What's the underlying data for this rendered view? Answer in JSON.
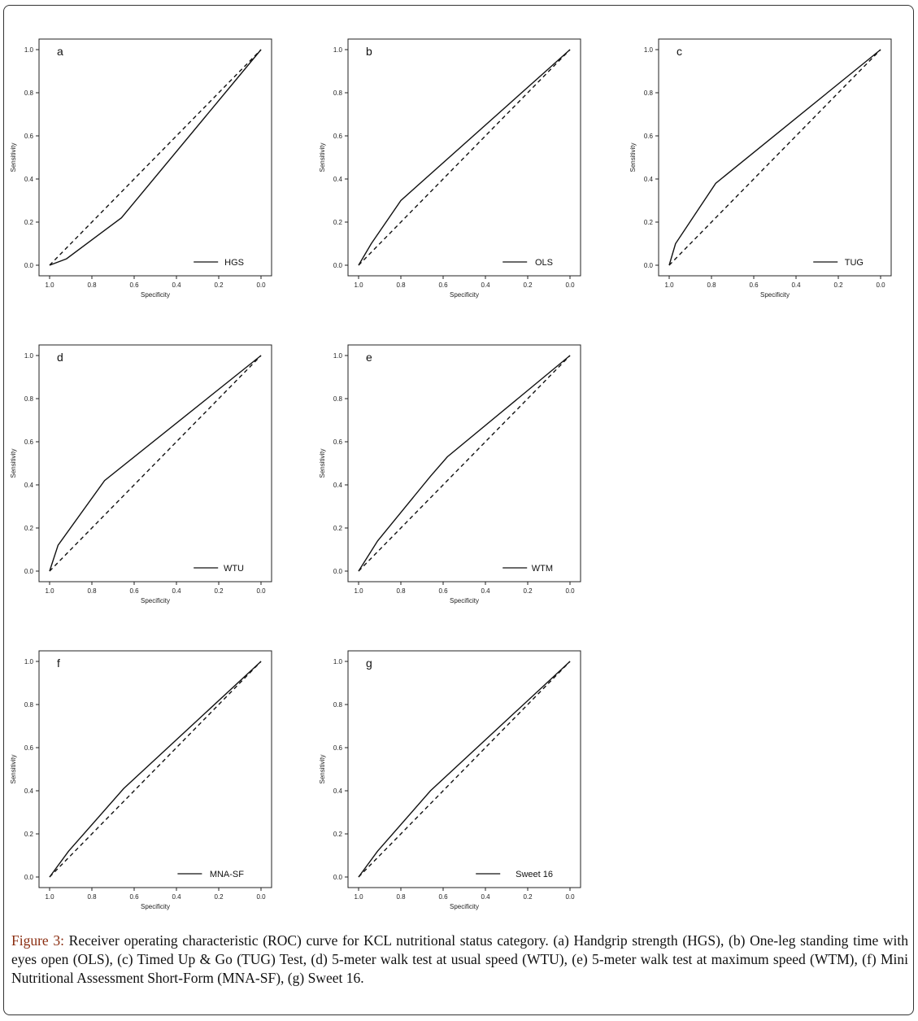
{
  "figure": {
    "caption_label": "Figure 3:",
    "caption_text": " Receiver operating characteristic (ROC) curve for KCL nutritional status category. (a) Handgrip strength (HGS), (b) One-leg standing time with eyes open (OLS), (c) Timed Up & Go (TUG) Test, (d) 5-meter walk test at usual speed (WTU), (e) 5-meter walk test at maximum speed (WTM), (f) Mini Nutritional Assessment Short-Form (MNA-SF), (g) Sweet 16."
  },
  "chart_data": [
    {
      "type": "line",
      "panel": "a",
      "xlabel": "Specificity",
      "ylabel": "Sensitivity",
      "xlim": [
        1.0,
        0.0
      ],
      "ylim": [
        0.0,
        1.0
      ],
      "xticks": [
        "1.0",
        "0.8",
        "0.6",
        "0.4",
        "0.2",
        "0.0"
      ],
      "yticks": [
        "0.0",
        "0.2",
        "0.4",
        "0.6",
        "0.8",
        "1.0"
      ],
      "legend_position": "bottom-right",
      "series": [
        {
          "name": "HGS",
          "style": "solid",
          "x": [
            1.0,
            0.92,
            0.66,
            0.0
          ],
          "y": [
            0.0,
            0.03,
            0.22,
            1.0
          ]
        },
        {
          "style": "dashed",
          "x": [
            1.0,
            0.0
          ],
          "y": [
            0.0,
            1.0
          ]
        }
      ]
    },
    {
      "type": "line",
      "panel": "b",
      "xlabel": "Specificity",
      "ylabel": "Sensitivity",
      "xlim": [
        1.0,
        0.0
      ],
      "ylim": [
        0.0,
        1.0
      ],
      "xticks": [
        "1.0",
        "0.8",
        "0.6",
        "0.4",
        "0.2",
        "0.0"
      ],
      "yticks": [
        "0.0",
        "0.2",
        "0.4",
        "0.6",
        "0.8",
        "1.0"
      ],
      "legend_position": "bottom-right",
      "series": [
        {
          "name": "OLS",
          "style": "solid",
          "x": [
            1.0,
            0.94,
            0.8,
            0.0
          ],
          "y": [
            0.0,
            0.1,
            0.3,
            1.0
          ]
        },
        {
          "style": "dashed",
          "x": [
            1.0,
            0.0
          ],
          "y": [
            0.0,
            1.0
          ]
        }
      ]
    },
    {
      "type": "line",
      "panel": "c",
      "xlabel": "Specificity",
      "ylabel": "Sensitivity",
      "xlim": [
        1.0,
        0.0
      ],
      "ylim": [
        0.0,
        1.0
      ],
      "xticks": [
        "1.0",
        "0.8",
        "0.6",
        "0.4",
        "0.2",
        "0.0"
      ],
      "yticks": [
        "0.0",
        "0.2",
        "0.4",
        "0.6",
        "0.8",
        "1.0"
      ],
      "legend_position": "bottom-right",
      "series": [
        {
          "name": "TUG",
          "style": "solid",
          "x": [
            1.0,
            0.97,
            0.78,
            0.0
          ],
          "y": [
            0.0,
            0.1,
            0.38,
            1.0
          ]
        },
        {
          "style": "dashed",
          "x": [
            1.0,
            0.0
          ],
          "y": [
            0.0,
            1.0
          ]
        }
      ]
    },
    {
      "type": "line",
      "panel": "d",
      "xlabel": "Specificity",
      "ylabel": "Sensitivity",
      "xlim": [
        1.0,
        0.0
      ],
      "ylim": [
        0.0,
        1.0
      ],
      "xticks": [
        "1.0",
        "0.8",
        "0.6",
        "0.4",
        "0.2",
        "0.0"
      ],
      "yticks": [
        "0.0",
        "0.2",
        "0.4",
        "0.6",
        "0.8",
        "1.0"
      ],
      "legend_position": "bottom-right",
      "series": [
        {
          "name": "WTU",
          "style": "solid",
          "x": [
            1.0,
            0.96,
            0.74,
            0.0
          ],
          "y": [
            0.0,
            0.12,
            0.42,
            1.0
          ]
        },
        {
          "style": "dashed",
          "x": [
            1.0,
            0.0
          ],
          "y": [
            0.0,
            1.0
          ]
        }
      ]
    },
    {
      "type": "line",
      "panel": "e",
      "xlabel": "Specificity",
      "ylabel": "Sensitivity",
      "xlim": [
        1.0,
        0.0
      ],
      "ylim": [
        0.0,
        1.0
      ],
      "xticks": [
        "1.0",
        "0.8",
        "0.6",
        "0.4",
        "0.2",
        "0.0"
      ],
      "yticks": [
        "0.0",
        "0.2",
        "0.4",
        "0.6",
        "0.8",
        "1.0"
      ],
      "legend_position": "bottom-right",
      "series": [
        {
          "name": "WTM",
          "style": "solid",
          "x": [
            1.0,
            0.91,
            0.66,
            0.58,
            0.0
          ],
          "y": [
            0.0,
            0.14,
            0.44,
            0.53,
            1.0
          ]
        },
        {
          "style": "dashed",
          "x": [
            1.0,
            0.0
          ],
          "y": [
            0.0,
            1.0
          ]
        }
      ]
    },
    {
      "type": "line",
      "panel": "f",
      "xlabel": "Specificity",
      "ylabel": "Sensitivity",
      "xlim": [
        1.0,
        0.0
      ],
      "ylim": [
        0.0,
        1.0
      ],
      "xticks": [
        "1.0",
        "0.8",
        "0.6",
        "0.4",
        "0.2",
        "0.0"
      ],
      "yticks": [
        "0.0",
        "0.2",
        "0.4",
        "0.6",
        "0.8",
        "1.0"
      ],
      "legend_position": "bottom-right",
      "series": [
        {
          "name": "MNA-SF",
          "style": "solid",
          "x": [
            1.0,
            0.91,
            0.65,
            0.0
          ],
          "y": [
            0.0,
            0.12,
            0.41,
            1.0
          ]
        },
        {
          "style": "dashed",
          "x": [
            1.0,
            0.0
          ],
          "y": [
            0.0,
            1.0
          ]
        }
      ]
    },
    {
      "type": "line",
      "panel": "g",
      "xlabel": "Specificity",
      "ylabel": "Sensitivity",
      "xlim": [
        1.0,
        0.0
      ],
      "ylim": [
        0.0,
        1.0
      ],
      "xticks": [
        "1.0",
        "0.8",
        "0.6",
        "0.4",
        "0.2",
        "0.0"
      ],
      "yticks": [
        "0.0",
        "0.2",
        "0.4",
        "0.6",
        "0.8",
        "1.0"
      ],
      "legend_position": "bottom-right",
      "series": [
        {
          "name": "Sweet 16",
          "style": "solid",
          "x": [
            1.0,
            0.91,
            0.66,
            0.0
          ],
          "y": [
            0.0,
            0.12,
            0.4,
            1.0
          ]
        },
        {
          "style": "dashed",
          "x": [
            1.0,
            0.0
          ],
          "y": [
            0.0,
            1.0
          ]
        }
      ]
    }
  ]
}
